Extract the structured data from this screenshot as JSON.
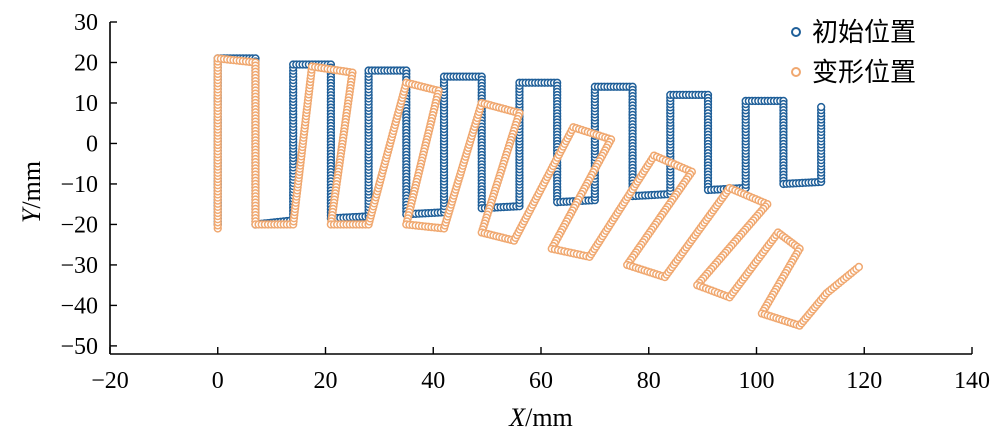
{
  "chart_data": {
    "type": "scatter",
    "title": "",
    "xlabel_var": "X",
    "xlabel_unit": "/mm",
    "ylabel_var": "Y",
    "ylabel_unit": "/mm",
    "xlim": [
      -20,
      140
    ],
    "ylim": [
      -52,
      30
    ],
    "xticks": [
      -20,
      0,
      20,
      40,
      60,
      80,
      100,
      120,
      140
    ],
    "yticks": [
      -50,
      -40,
      -30,
      -20,
      -10,
      0,
      10,
      20,
      30
    ],
    "grid": false,
    "legend_position": "top-right",
    "series": [
      {
        "name": "初始位置",
        "color": "#1f5f99",
        "marker": "open-circle",
        "path_vertices": [
          [
            0,
            -20
          ],
          [
            0,
            21
          ],
          [
            7,
            21
          ],
          [
            7,
            -20
          ],
          [
            14,
            -19
          ],
          [
            14,
            19.5
          ],
          [
            21,
            19.5
          ],
          [
            21,
            -18.5
          ],
          [
            28,
            -18
          ],
          [
            28,
            18
          ],
          [
            35,
            18
          ],
          [
            35,
            -17.5
          ],
          [
            42,
            -17
          ],
          [
            42,
            16.5
          ],
          [
            49,
            16.5
          ],
          [
            49,
            -16
          ],
          [
            56,
            -15.5
          ],
          [
            56,
            15
          ],
          [
            63,
            15
          ],
          [
            63,
            -14.5
          ],
          [
            70,
            -14
          ],
          [
            70,
            14
          ],
          [
            77,
            14
          ],
          [
            77,
            -13
          ],
          [
            84,
            -12.5
          ],
          [
            84,
            12
          ],
          [
            91,
            12
          ],
          [
            91,
            -11.5
          ],
          [
            98,
            -11
          ],
          [
            98,
            10.5
          ],
          [
            105,
            10.5
          ],
          [
            105,
            -10
          ],
          [
            112,
            -9.5
          ],
          [
            112,
            9
          ]
        ]
      },
      {
        "name": "变形位置",
        "color": "#f0a870",
        "marker": "open-circle",
        "path_vertices": [
          [
            0,
            -21
          ],
          [
            0,
            21
          ],
          [
            7,
            20
          ],
          [
            7,
            -20
          ],
          [
            14,
            -20
          ],
          [
            17.5,
            19
          ],
          [
            25,
            17.5
          ],
          [
            21,
            -20
          ],
          [
            28,
            -20
          ],
          [
            35,
            15
          ],
          [
            41,
            13
          ],
          [
            35,
            -20
          ],
          [
            42,
            -21
          ],
          [
            49,
            10
          ],
          [
            56,
            7.5
          ],
          [
            49,
            -22
          ],
          [
            55,
            -24
          ],
          [
            66,
            4
          ],
          [
            73,
            1
          ],
          [
            62,
            -26
          ],
          [
            69,
            -28
          ],
          [
            81,
            -3
          ],
          [
            88,
            -7
          ],
          [
            76,
            -30
          ],
          [
            83,
            -33
          ],
          [
            95,
            -11
          ],
          [
            102,
            -15
          ],
          [
            89,
            -35
          ],
          [
            95,
            -38
          ],
          [
            104,
            -22
          ],
          [
            108,
            -26
          ],
          [
            101,
            -42
          ],
          [
            108,
            -45
          ],
          [
            113,
            -37
          ],
          [
            119,
            -30.5
          ]
        ]
      }
    ]
  }
}
